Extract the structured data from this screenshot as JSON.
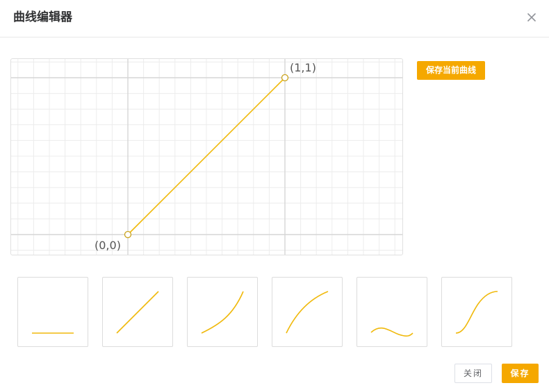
{
  "dialog": {
    "title": "曲线编辑器",
    "close_icon": "close-icon"
  },
  "editor": {
    "start_label": "(0,0)",
    "end_label": "(1,1)",
    "curve_color": "#f0b90b",
    "grid_color": "#ececec",
    "axis_color": "#d6d6d6"
  },
  "actions": {
    "save_current_curve": "保存当前曲线"
  },
  "presets": [
    {
      "name": "preset-flat"
    },
    {
      "name": "preset-linear"
    },
    {
      "name": "preset-ease-in"
    },
    {
      "name": "preset-ease-out"
    },
    {
      "name": "preset-wave"
    },
    {
      "name": "preset-s-curve"
    }
  ],
  "footer": {
    "close_label": "关闭",
    "save_label": "保存"
  },
  "colors": {
    "accent": "#f5a800",
    "curve": "#f0b90b",
    "border": "#dcdcdc"
  }
}
